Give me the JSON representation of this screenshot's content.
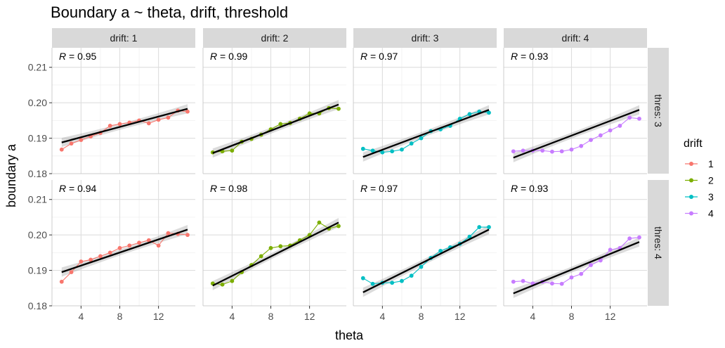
{
  "chart_data": {
    "type": "scatter",
    "title": "Boundary a ~ theta, drift, threshold",
    "xlabel": "theta",
    "ylabel": "boundary a",
    "x_ticks": [
      4,
      8,
      12
    ],
    "x_range": [
      1,
      15.8
    ],
    "y_ticks": [
      "0.18",
      "0.19",
      "0.20",
      "0.21"
    ],
    "y_range": [
      0.18,
      0.2155
    ],
    "legend_title": "drift",
    "col_facet_labels": [
      "drift: 1",
      "drift: 2",
      "drift: 3",
      "drift: 4"
    ],
    "row_facet_labels": [
      "thres: 3",
      "thres: 4"
    ],
    "theta": [
      2,
      3,
      4,
      5,
      6,
      7,
      8,
      9,
      10,
      11,
      12,
      13,
      14,
      15
    ],
    "series": [
      {
        "name": "1",
        "color": "#F8766D"
      },
      {
        "name": "2",
        "color": "#7CAE00"
      },
      {
        "name": "3",
        "color": "#00BFC4"
      },
      {
        "name": "4",
        "color": "#C77CFF"
      }
    ],
    "panels": [
      {
        "row": 0,
        "col": 0,
        "r_label": "0.95",
        "fit": [
          0.1888,
          0.1983
        ],
        "y": [
          0.1868,
          0.1885,
          0.1895,
          0.1905,
          0.1915,
          0.1935,
          0.194,
          0.1944,
          0.195,
          0.1942,
          0.1952,
          0.1958,
          0.1978,
          0.1975
        ]
      },
      {
        "row": 0,
        "col": 1,
        "r_label": "0.99",
        "fit": [
          0.1858,
          0.1995
        ],
        "y": [
          0.186,
          0.1863,
          0.1865,
          0.189,
          0.1898,
          0.191,
          0.1925,
          0.194,
          0.1943,
          0.1955,
          0.197,
          0.197,
          0.1985,
          0.1983
        ]
      },
      {
        "row": 0,
        "col": 2,
        "r_label": "0.97",
        "fit": [
          0.1847,
          0.198
        ],
        "y": [
          0.187,
          0.1865,
          0.186,
          0.1863,
          0.1868,
          0.1885,
          0.19,
          0.192,
          0.1925,
          0.1935,
          0.1955,
          0.1968,
          0.1975,
          0.1972
        ]
      },
      {
        "row": 0,
        "col": 3,
        "r_label": "0.93",
        "fit": [
          0.1845,
          0.198
        ],
        "y": [
          0.1863,
          0.1865,
          0.1865,
          0.1865,
          0.1862,
          0.1863,
          0.1868,
          0.1878,
          0.1895,
          0.1908,
          0.1922,
          0.1935,
          0.1958,
          0.1955
        ]
      },
      {
        "row": 1,
        "col": 0,
        "r_label": "0.94",
        "fit": [
          0.1895,
          0.2015
        ],
        "y": [
          0.1868,
          0.1895,
          0.1925,
          0.193,
          0.194,
          0.195,
          0.1963,
          0.197,
          0.1978,
          0.1985,
          0.197,
          0.2005,
          0.2003,
          0.2
        ]
      },
      {
        "row": 1,
        "col": 1,
        "r_label": "0.98",
        "fit": [
          0.1857,
          0.2035
        ],
        "y": [
          0.1863,
          0.186,
          0.187,
          0.1895,
          0.1915,
          0.194,
          0.1963,
          0.1968,
          0.197,
          0.1985,
          0.2,
          0.2035,
          0.2018,
          0.2025
        ]
      },
      {
        "row": 1,
        "col": 2,
        "r_label": "0.97",
        "fit": [
          0.1838,
          0.2015
        ],
        "y": [
          0.1878,
          0.1862,
          0.1865,
          0.1865,
          0.187,
          0.1885,
          0.191,
          0.1935,
          0.1955,
          0.1965,
          0.1975,
          0.1995,
          0.2022,
          0.2022
        ]
      },
      {
        "row": 1,
        "col": 3,
        "r_label": "0.93",
        "fit": [
          0.1835,
          0.198
        ],
        "y": [
          0.1868,
          0.187,
          0.1863,
          0.1868,
          0.1863,
          0.1862,
          0.188,
          0.189,
          0.1915,
          0.1928,
          0.1958,
          0.1963,
          0.199,
          0.1993
        ]
      }
    ]
  }
}
